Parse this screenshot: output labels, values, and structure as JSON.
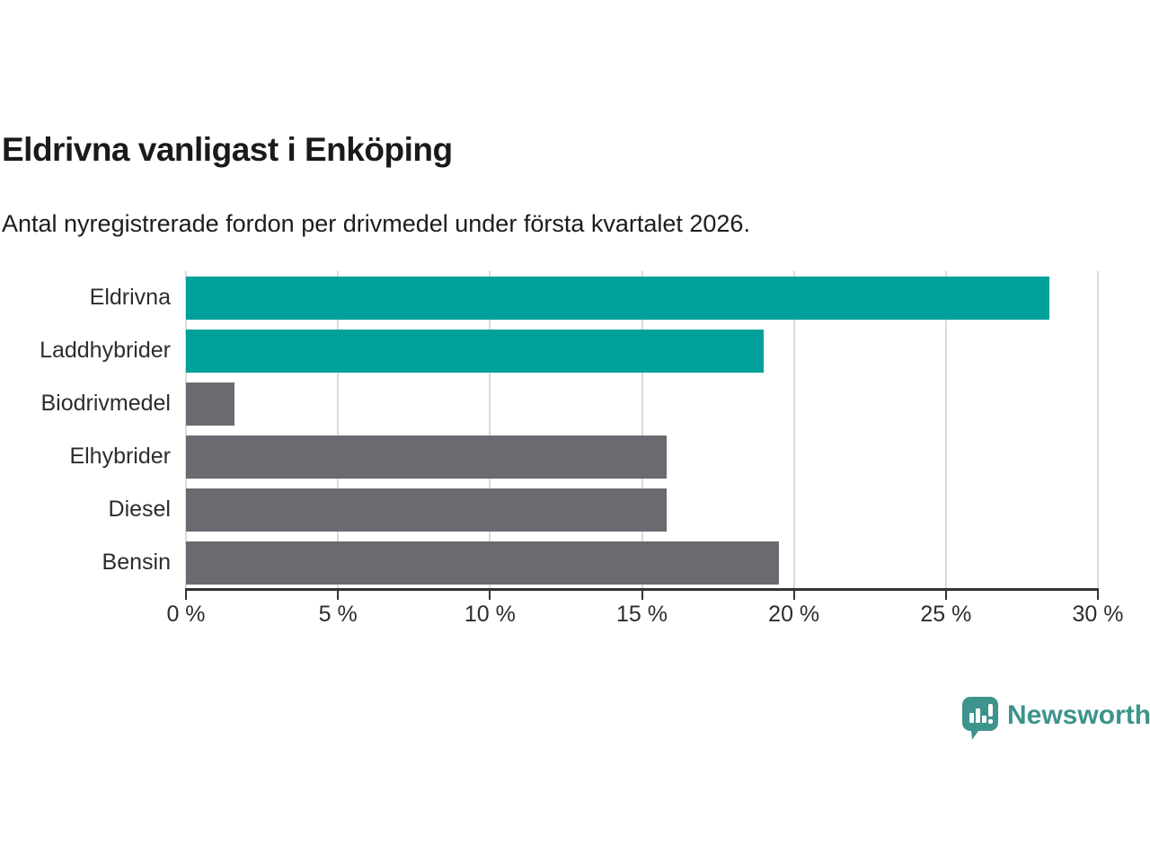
{
  "header": {
    "title": "Eldrivna vanligast i Enköping",
    "subtitle": "Antal nyregistrerade fordon per drivmedel under första kvartalet 2026."
  },
  "chart_data": {
    "type": "bar",
    "orientation": "horizontal",
    "title": "Eldrivna vanligast i Enköping",
    "subtitle": "Antal nyregistrerade fordon per drivmedel under första kvartalet 2026.",
    "categories": [
      "Eldrivna",
      "Laddhybrider",
      "Biodrivmedel",
      "Elhybrider",
      "Diesel",
      "Bensin"
    ],
    "values": [
      28.4,
      19.0,
      1.6,
      15.8,
      15.8,
      19.5
    ],
    "highlighted": [
      true,
      true,
      false,
      false,
      false,
      false
    ],
    "xlim": [
      0,
      30
    ],
    "xticks": [
      0,
      5,
      10,
      15,
      20,
      25,
      30
    ],
    "xtick_suffix": " %",
    "unit": "%",
    "grid": "vertical",
    "legend": "none",
    "colors": {
      "highlight": "#00a19a",
      "neutral": "#6a6a70",
      "gridline": "#dadada",
      "axis": "#333333"
    }
  },
  "branding": {
    "logo_text": "Newsworthy",
    "logo_color": "#3d948c",
    "logo_icon": "newsworthy-speech-bubble-chart-icon"
  }
}
